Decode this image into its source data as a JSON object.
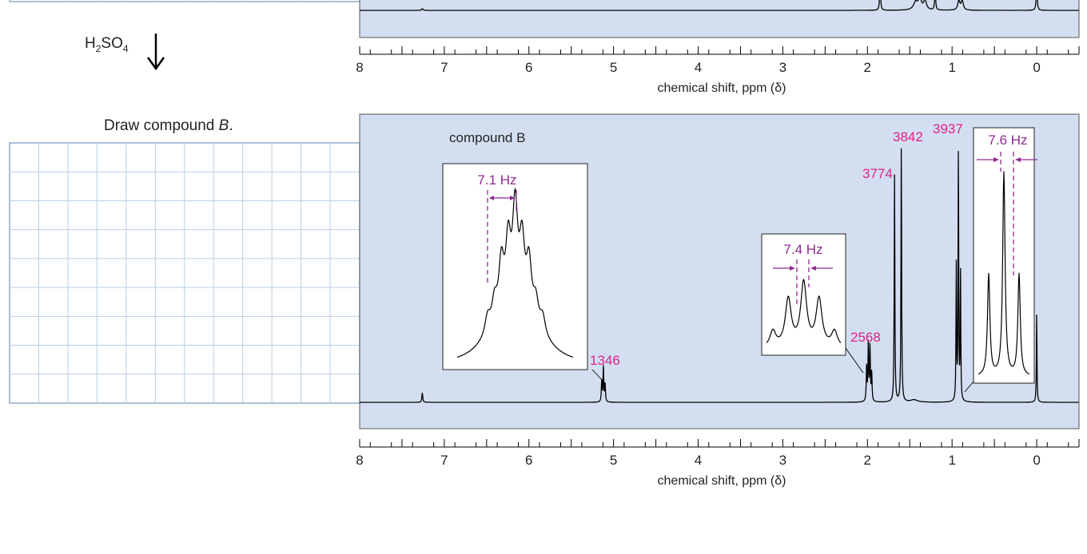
{
  "reaction": {
    "reagent_main": "H",
    "reagent_sub2": "2",
    "reagent_mid": "SO",
    "reagent_sub4": "4",
    "prompt_main": "Draw compound ",
    "prompt_italic": "B",
    "prompt_end": "."
  },
  "colors": {
    "panel": "#d3dff0",
    "peak_label": "#e0218a",
    "inset_label": "#8e2b8f",
    "grid": "#b8cfe4",
    "trace": "#000000"
  },
  "chart_data": [
    {
      "type": "line",
      "description_visible": "upper spectrum (cropped at top edge)",
      "xlabel": "chemical shift, ppm (δ)",
      "xlim": [
        8,
        -0.5
      ],
      "x_ticks": [
        "8",
        "7",
        "6",
        "5",
        "4",
        "3",
        "2",
        "1",
        "0"
      ],
      "peaks_ppm": [
        7.26,
        1.85,
        1.4,
        1.3,
        1.2,
        0.9,
        0.0
      ]
    },
    {
      "type": "line",
      "title": "compound B",
      "xlabel": "chemical shift, ppm (δ)",
      "xlim": [
        8,
        -0.5
      ],
      "x_ticks": [
        "8",
        "7",
        "6",
        "5",
        "4",
        "3",
        "2",
        "1",
        "0"
      ],
      "peaks": [
        {
          "ppm": 7.26,
          "intensity": 12
        },
        {
          "ppm": 5.12,
          "intensity": 45,
          "integral": "1346"
        },
        {
          "ppm": 1.98,
          "intensity": 72,
          "integral": "2568"
        },
        {
          "ppm": 1.68,
          "intensity": 285,
          "integral": "3774"
        },
        {
          "ppm": 1.6,
          "intensity": 320,
          "integral": "3842"
        },
        {
          "ppm": 0.92,
          "intensity": 330,
          "integral": "3937"
        },
        {
          "ppm": 0.0,
          "intensity": 112
        }
      ],
      "insets": [
        {
          "label": "7.1 Hz",
          "peaks": [
            0.18,
            0.25,
            0.55,
            0.68,
            1.0,
            0.68,
            0.55,
            0.25,
            0.18
          ]
        },
        {
          "label": "7.4 Hz",
          "peaks": [
            0.25,
            0.75,
            1.0,
            0.75,
            0.25
          ]
        },
        {
          "label": "7.6 Hz",
          "peaks": [
            0.5,
            1.0,
            0.5
          ]
        }
      ]
    }
  ]
}
